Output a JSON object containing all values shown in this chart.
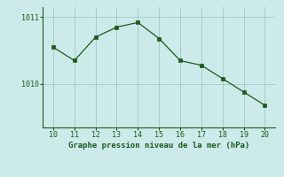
{
  "x": [
    10,
    11,
    12,
    13,
    14,
    15,
    16,
    17,
    18,
    19,
    20
  ],
  "y": [
    1010.55,
    1010.35,
    1010.7,
    1010.85,
    1010.92,
    1010.68,
    1010.35,
    1010.28,
    1010.08,
    1009.88,
    1009.68
  ],
  "xlabel": "Graphe pression niveau de la mer (hPa)",
  "yticks": [
    1010,
    1011
  ],
  "xticks": [
    10,
    11,
    12,
    13,
    14,
    15,
    16,
    17,
    18,
    19,
    20
  ],
  "ylim": [
    1009.35,
    1011.15
  ],
  "xlim": [
    9.5,
    20.5
  ],
  "line_color": "#1a5c1a",
  "marker_color": "#1a5c1a",
  "bg_color": "#cceaea",
  "grid_color": "#aacccc",
  "tick_color": "#1a5c1a",
  "label_color": "#1a5c1a",
  "font_family": "monospace"
}
